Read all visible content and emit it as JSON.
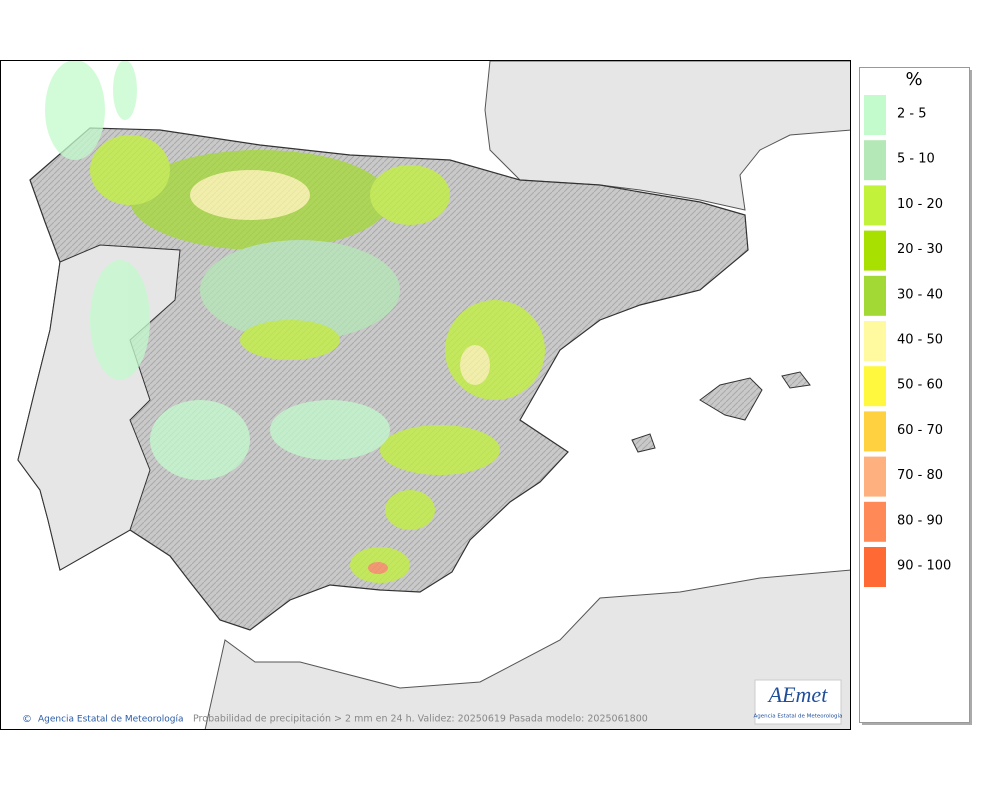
{
  "legend": {
    "title": "%",
    "items": [
      {
        "label": "2 - 5",
        "color": "#c3fbcc"
      },
      {
        "label": "5 - 10",
        "color": "#b4e8b6"
      },
      {
        "label": "10 - 20",
        "color": "#c2f23a"
      },
      {
        "label": "20 - 30",
        "color": "#a8e002"
      },
      {
        "label": "30 - 40",
        "color": "#a3d934"
      },
      {
        "label": "40 - 50",
        "color": "#fffaa0"
      },
      {
        "label": "50 - 60",
        "color": "#fff83f"
      },
      {
        "label": "60 - 70",
        "color": "#ffd040"
      },
      {
        "label": "70 - 80",
        "color": "#ffb07f"
      },
      {
        "label": "80 - 90",
        "color": "#ff8a58"
      },
      {
        "label": "90 - 100",
        "color": "#ff6a34"
      }
    ]
  },
  "footer": {
    "credit": "Agencia Estatal de Meteorología",
    "caption": "Probabilidad de precipitación > 2 mm en 24 h. Validez: 20250619 Pasada modelo: 2025061800"
  },
  "logo": {
    "name": "AEmet",
    "subtitle": "Agencia Estatal de Meteorología"
  }
}
